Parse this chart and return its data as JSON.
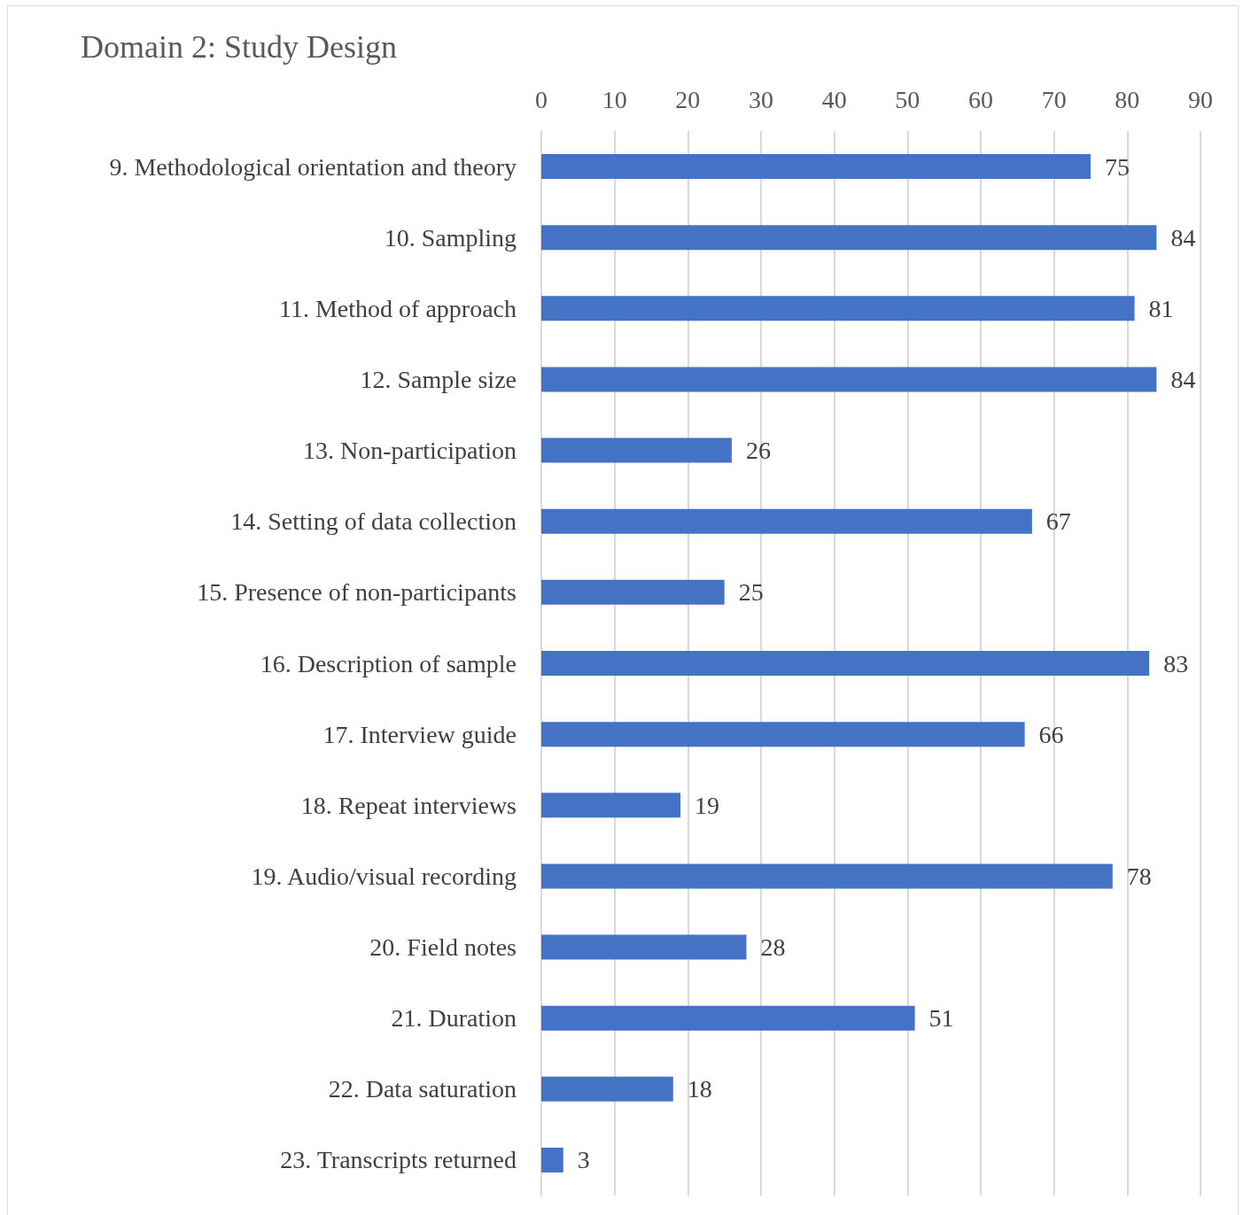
{
  "chart_data": {
    "type": "bar",
    "orientation": "horizontal",
    "title": "Domain 2: Study Design",
    "categories": [
      "9. Methodological orientation and theory",
      "10. Sampling",
      "11. Method of approach",
      "12. Sample size",
      "13. Non-participation",
      "14. Setting of data collection",
      "15. Presence of non-participants",
      "16. Description of sample",
      "17. Interview guide",
      "18. Repeat interviews",
      "19. Audio/visual recording",
      "20. Field notes",
      "21. Duration",
      "22. Data saturation",
      "23. Transcripts returned"
    ],
    "values": [
      75,
      84,
      81,
      84,
      26,
      67,
      25,
      83,
      66,
      19,
      78,
      28,
      51,
      18,
      3
    ],
    "color": "#4472c4",
    "xlim": [
      0,
      90
    ],
    "xticks": [
      0,
      10,
      20,
      30,
      40,
      50,
      60,
      70,
      80,
      90
    ],
    "grid": "x",
    "data_labels": true
  }
}
